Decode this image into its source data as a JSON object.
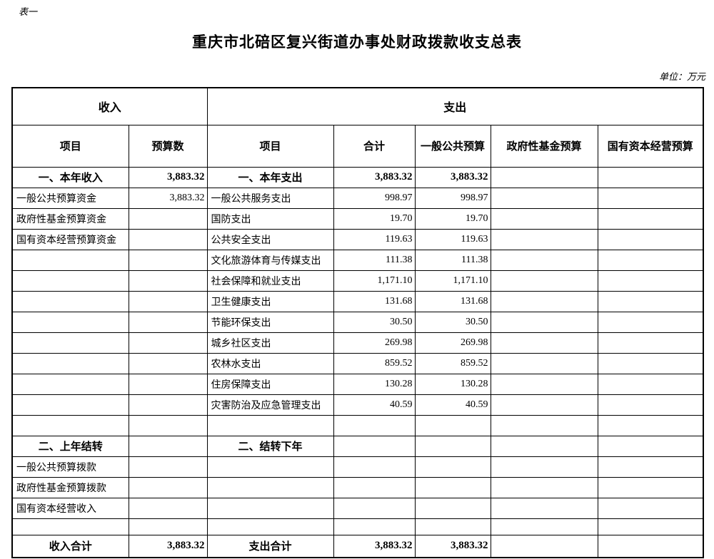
{
  "page": {
    "table_label": "表一",
    "title": "重庆市北碚区复兴街道办事处财政拨款收支总表",
    "unit_note": "单位：万元"
  },
  "table": {
    "group_headers": {
      "income": "收入",
      "expense": "支出"
    },
    "columns": [
      "项目",
      "预算数",
      "项目",
      "合计",
      "一般公共预算",
      "政府性基金预算",
      "国有资本经营预算"
    ],
    "rows": [
      {
        "type": "section",
        "cells": [
          "一、本年收入",
          "3,883.32",
          "一、本年支出",
          "3,883.32",
          "3,883.32",
          "",
          ""
        ]
      },
      {
        "type": "item",
        "cells": [
          "一般公共预算资金",
          "3,883.32",
          "一般公共服务支出",
          "998.97",
          "998.97",
          "",
          ""
        ]
      },
      {
        "type": "item",
        "cells": [
          "政府性基金预算资金",
          "",
          "国防支出",
          "19.70",
          "19.70",
          "",
          ""
        ]
      },
      {
        "type": "item",
        "cells": [
          "国有资本经营预算资金",
          "",
          "公共安全支出",
          "119.63",
          "119.63",
          "",
          ""
        ]
      },
      {
        "type": "item",
        "cells": [
          "",
          "",
          "文化旅游体育与传媒支出",
          "111.38",
          "111.38",
          "",
          ""
        ]
      },
      {
        "type": "item",
        "cells": [
          "",
          "",
          "社会保障和就业支出",
          "1,171.10",
          "1,171.10",
          "",
          ""
        ]
      },
      {
        "type": "item",
        "cells": [
          "",
          "",
          "卫生健康支出",
          "131.68",
          "131.68",
          "",
          ""
        ]
      },
      {
        "type": "item",
        "cells": [
          "",
          "",
          "节能环保支出",
          "30.50",
          "30.50",
          "",
          ""
        ]
      },
      {
        "type": "item",
        "cells": [
          "",
          "",
          "城乡社区支出",
          "269.98",
          "269.98",
          "",
          ""
        ]
      },
      {
        "type": "item",
        "cells": [
          "",
          "",
          "农林水支出",
          "859.52",
          "859.52",
          "",
          ""
        ]
      },
      {
        "type": "item",
        "cells": [
          "",
          "",
          "住房保障支出",
          "130.28",
          "130.28",
          "",
          ""
        ]
      },
      {
        "type": "item",
        "cells": [
          "",
          "",
          "灾害防治及应急管理支出",
          "40.59",
          "40.59",
          "",
          ""
        ]
      },
      {
        "type": "blank",
        "cells": [
          "",
          "",
          "",
          "",
          "",
          "",
          ""
        ]
      },
      {
        "type": "section",
        "cells": [
          "二、上年结转",
          "",
          "二、结转下年",
          "",
          "",
          "",
          ""
        ]
      },
      {
        "type": "item",
        "cells": [
          "一般公共预算拨款",
          "",
          "",
          "",
          "",
          "",
          ""
        ]
      },
      {
        "type": "item",
        "cells": [
          "政府性基金预算拨款",
          "",
          "",
          "",
          "",
          "",
          ""
        ]
      },
      {
        "type": "item",
        "cells": [
          "国有资本经营收入",
          "",
          "",
          "",
          "",
          "",
          ""
        ]
      },
      {
        "type": "blank-short",
        "cells": [
          "",
          "",
          "",
          "",
          "",
          "",
          ""
        ]
      },
      {
        "type": "grand",
        "cells": [
          "收入合计",
          "3,883.32",
          "支出合计",
          "3,883.32",
          "3,883.32",
          "",
          ""
        ]
      }
    ]
  }
}
